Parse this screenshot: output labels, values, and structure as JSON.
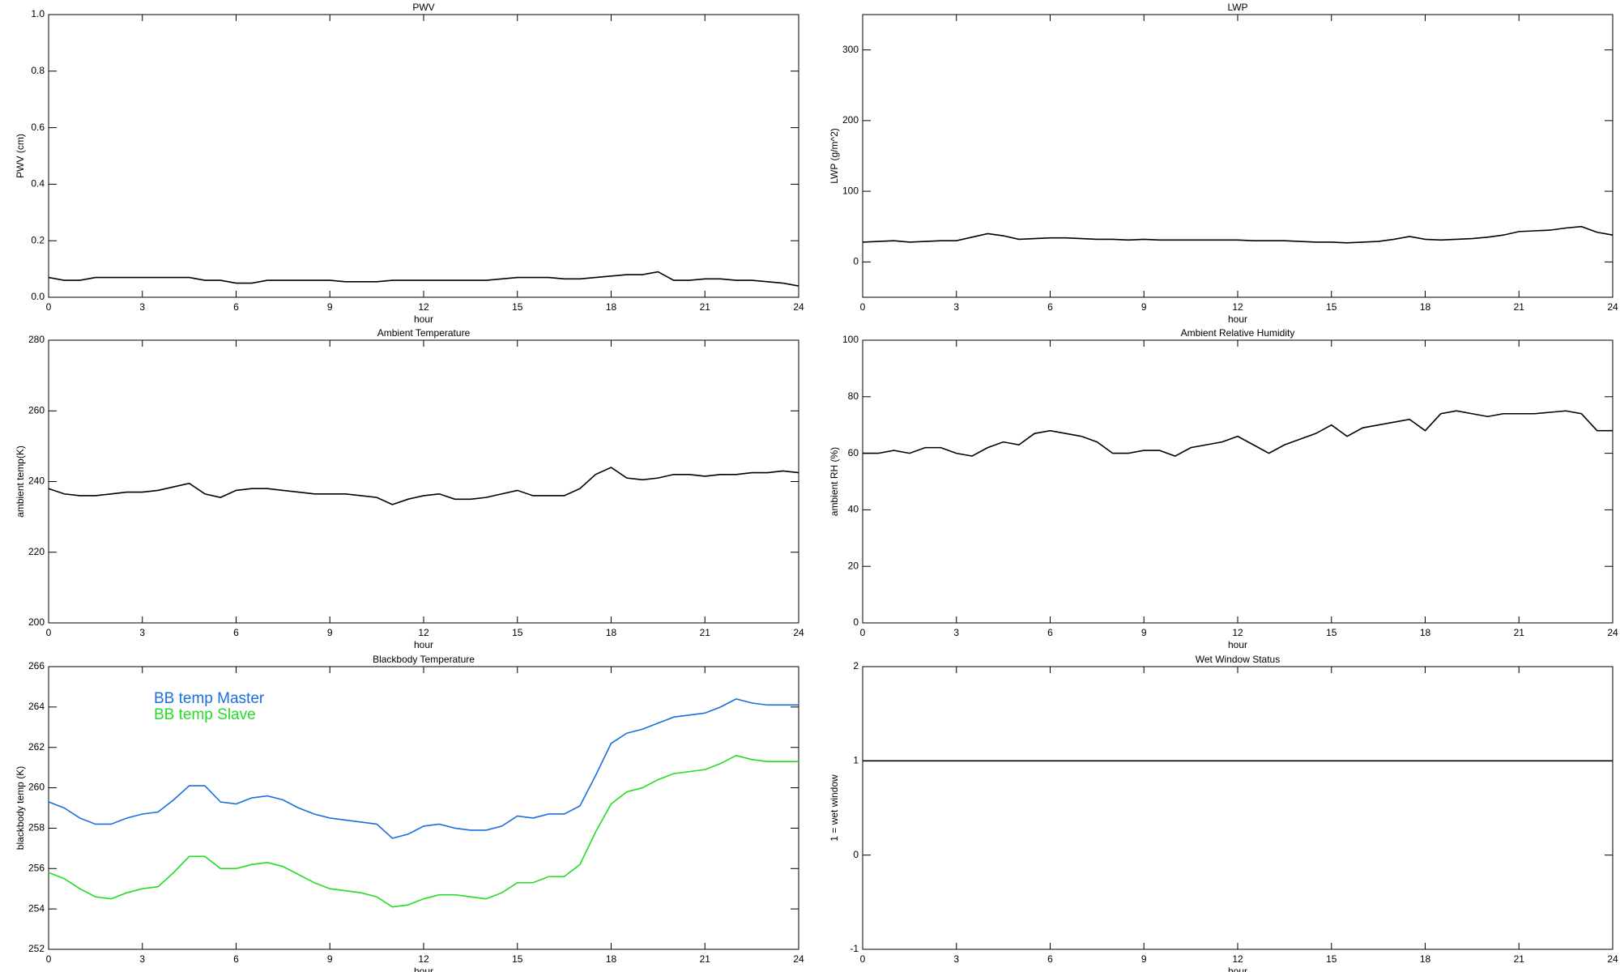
{
  "chart_data": [
    {
      "type": "line",
      "title": "PWV",
      "xlabel": "hour",
      "ylabel": "PWV (cm)",
      "x": [
        0,
        0.5,
        1,
        1.5,
        2,
        2.5,
        3,
        3.5,
        4,
        4.5,
        5,
        5.5,
        6,
        6.5,
        7,
        7.5,
        8,
        8.5,
        9,
        9.5,
        10,
        10.5,
        11,
        11.5,
        12,
        12.5,
        13,
        13.5,
        14,
        14.5,
        15,
        15.5,
        16,
        16.5,
        17,
        17.5,
        18,
        18.5,
        19,
        19.5,
        20,
        20.5,
        21,
        21.5,
        22,
        22.5,
        23,
        23.5,
        24
      ],
      "series": [
        {
          "color": "#000000",
          "values": [
            0.07,
            0.06,
            0.06,
            0.07,
            0.07,
            0.07,
            0.07,
            0.07,
            0.07,
            0.07,
            0.06,
            0.06,
            0.05,
            0.05,
            0.06,
            0.06,
            0.06,
            0.06,
            0.06,
            0.055,
            0.055,
            0.055,
            0.06,
            0.06,
            0.06,
            0.06,
            0.06,
            0.06,
            0.06,
            0.065,
            0.07,
            0.07,
            0.07,
            0.065,
            0.065,
            0.07,
            0.075,
            0.08,
            0.08,
            0.09,
            0.06,
            0.06,
            0.065,
            0.065,
            0.06,
            0.06,
            0.055,
            0.05,
            0.04
          ]
        }
      ],
      "xlim": [
        0,
        24
      ],
      "xticks": [
        0,
        3,
        6,
        9,
        12,
        15,
        18,
        21,
        24
      ],
      "ylim": [
        0,
        1
      ],
      "yticks": [
        {
          "value": 0,
          "label": "0.0"
        },
        0.2,
        0.4,
        0.6,
        0.8,
        {
          "value": 1,
          "label": "1.0"
        }
      ]
    },
    {
      "type": "line",
      "title": "LWP",
      "xlabel": "hour",
      "ylabel": "LWP (g/m^2)",
      "x": [
        0,
        0.5,
        1,
        1.5,
        2,
        2.5,
        3,
        3.5,
        4,
        4.5,
        5,
        5.5,
        6,
        6.5,
        7,
        7.5,
        8,
        8.5,
        9,
        9.5,
        10,
        10.5,
        11,
        11.5,
        12,
        12.5,
        13,
        13.5,
        14,
        14.5,
        15,
        15.5,
        16,
        16.5,
        17,
        17.5,
        18,
        18.5,
        19,
        19.5,
        20,
        20.5,
        21,
        21.5,
        22,
        22.5,
        23,
        23.5,
        24
      ],
      "series": [
        {
          "color": "#000000",
          "values": [
            28,
            29,
            30,
            28,
            29,
            30,
            30,
            35,
            40,
            37,
            32,
            33,
            34,
            34,
            33,
            32,
            32,
            31,
            32,
            31,
            31,
            31,
            31,
            31,
            31,
            30,
            30,
            30,
            29,
            28,
            28,
            27,
            28,
            29,
            32,
            36,
            32,
            31,
            32,
            33,
            35,
            38,
            43,
            44,
            45,
            48,
            50,
            42,
            38
          ]
        }
      ],
      "xlim": [
        0,
        24
      ],
      "xticks": [
        0,
        3,
        6,
        9,
        12,
        15,
        18,
        21,
        24
      ],
      "ylim": [
        -50,
        350
      ],
      "yticks": [
        0,
        100,
        200,
        300
      ]
    },
    {
      "type": "line",
      "title": "Ambient Temperature",
      "xlabel": "hour",
      "ylabel": "ambient temp(K)",
      "x": [
        0,
        0.5,
        1,
        1.5,
        2,
        2.5,
        3,
        3.5,
        4,
        4.5,
        5,
        5.5,
        6,
        6.5,
        7,
        7.5,
        8,
        8.5,
        9,
        9.5,
        10,
        10.5,
        11,
        11.5,
        12,
        12.5,
        13,
        13.5,
        14,
        14.5,
        15,
        15.5,
        16,
        16.5,
        17,
        17.5,
        18,
        18.5,
        19,
        19.5,
        20,
        20.5,
        21,
        21.5,
        22,
        22.5,
        23,
        23.5,
        24
      ],
      "series": [
        {
          "color": "#000000",
          "values": [
            238,
            236.5,
            236,
            236,
            236.5,
            237,
            237,
            237.5,
            238.5,
            239.5,
            236.5,
            235.5,
            237.5,
            238,
            238,
            237.5,
            237,
            236.5,
            236.5,
            236.5,
            236,
            235.5,
            233.5,
            235,
            236,
            236.5,
            235,
            235,
            235.5,
            236.5,
            237.5,
            236,
            236,
            236,
            238,
            242,
            244,
            241,
            240.5,
            241,
            242,
            242,
            241.5,
            242,
            242,
            242.5,
            242.5,
            243,
            242.5
          ]
        }
      ],
      "xlim": [
        0,
        24
      ],
      "xticks": [
        0,
        3,
        6,
        9,
        12,
        15,
        18,
        21,
        24
      ],
      "ylim": [
        200,
        280
      ],
      "yticks": [
        200,
        220,
        240,
        260,
        280
      ]
    },
    {
      "type": "line",
      "title": "Ambient Relative Humidity",
      "xlabel": "hour",
      "ylabel": "ambient RH (%)",
      "x": [
        0,
        0.5,
        1,
        1.5,
        2,
        2.5,
        3,
        3.5,
        4,
        4.5,
        5,
        5.5,
        6,
        6.5,
        7,
        7.5,
        8,
        8.5,
        9,
        9.5,
        10,
        10.5,
        11,
        11.5,
        12,
        12.5,
        13,
        13.5,
        14,
        14.5,
        15,
        15.5,
        16,
        16.5,
        17,
        17.5,
        18,
        18.5,
        19,
        19.5,
        20,
        20.5,
        21,
        21.5,
        22,
        22.5,
        23,
        23.5,
        24
      ],
      "series": [
        {
          "color": "#000000",
          "values": [
            60,
            60,
            61,
            60,
            62,
            62,
            60,
            59,
            62,
            64,
            63,
            67,
            68,
            67,
            66,
            64,
            60,
            60,
            61,
            61,
            59,
            62,
            63,
            64,
            66,
            63,
            60,
            63,
            65,
            67,
            70,
            66,
            69,
            70,
            71,
            72,
            68,
            74,
            75,
            74,
            73,
            74,
            74,
            74,
            74.5,
            75,
            74,
            68,
            68
          ]
        }
      ],
      "xlim": [
        0,
        24
      ],
      "xticks": [
        0,
        3,
        6,
        9,
        12,
        15,
        18,
        21,
        24
      ],
      "ylim": [
        0,
        100
      ],
      "yticks": [
        0,
        20,
        40,
        60,
        80,
        100
      ]
    },
    {
      "type": "line",
      "title": "Blackbody Temperature",
      "xlabel": "hour",
      "ylabel": "blackbody temp (K)",
      "x": [
        0,
        0.5,
        1,
        1.5,
        2,
        2.5,
        3,
        3.5,
        4,
        4.5,
        5,
        5.5,
        6,
        6.5,
        7,
        7.5,
        8,
        8.5,
        9,
        9.5,
        10,
        10.5,
        11,
        11.5,
        12,
        12.5,
        13,
        13.5,
        14,
        14.5,
        15,
        15.5,
        16,
        16.5,
        17,
        17.5,
        18,
        18.5,
        19,
        19.5,
        20,
        20.5,
        21,
        21.5,
        22,
        22.5,
        23,
        23.5,
        24
      ],
      "series": [
        {
          "name": "BB temp Master",
          "color": "#1a6fe0",
          "values": [
            259.3,
            259,
            258.5,
            258.2,
            258.2,
            258.5,
            258.7,
            258.8,
            259.4,
            260.1,
            260.1,
            259.3,
            259.2,
            259.5,
            259.6,
            259.4,
            259,
            258.7,
            258.5,
            258.4,
            258.3,
            258.2,
            257.5,
            257.7,
            258.1,
            258.2,
            258,
            257.9,
            257.9,
            258.1,
            258.6,
            258.5,
            258.7,
            258.7,
            259.1,
            260.6,
            262.2,
            262.7,
            262.9,
            263.2,
            263.5,
            263.6,
            263.7,
            264,
            264.4,
            264.2,
            264.1,
            264.1,
            264.1
          ]
        },
        {
          "name": "BB temp Slave",
          "color": "#22dd22",
          "values": [
            255.8,
            255.5,
            255,
            254.6,
            254.5,
            254.8,
            255,
            255.1,
            255.8,
            256.6,
            256.6,
            256,
            256,
            256.2,
            256.3,
            256.1,
            255.7,
            255.3,
            255,
            254.9,
            254.8,
            254.6,
            254.1,
            254.2,
            254.5,
            254.7,
            254.7,
            254.6,
            254.5,
            254.8,
            255.3,
            255.3,
            255.6,
            255.6,
            256.2,
            257.8,
            259.2,
            259.8,
            260,
            260.4,
            260.7,
            260.8,
            260.9,
            261.2,
            261.6,
            261.4,
            261.3,
            261.3,
            261.3
          ]
        }
      ],
      "xlim": [
        0,
        24
      ],
      "xticks": [
        0,
        3,
        6,
        9,
        12,
        15,
        18,
        21,
        24
      ],
      "ylim": [
        252,
        266
      ],
      "yticks": [
        252,
        254,
        256,
        258,
        260,
        262,
        264,
        266
      ]
    },
    {
      "type": "line",
      "title": "Wet Window Status",
      "xlabel": "hour",
      "ylabel": "1 = wet window",
      "x": [
        0,
        24
      ],
      "series": [
        {
          "color": "#000000",
          "values": [
            1,
            1
          ]
        }
      ],
      "xlim": [
        0,
        24
      ],
      "xticks": [
        0,
        3,
        6,
        9,
        12,
        15,
        18,
        21,
        24
      ],
      "ylim": [
        -1,
        2
      ],
      "yticks": [
        -1,
        0,
        1,
        2
      ]
    }
  ]
}
